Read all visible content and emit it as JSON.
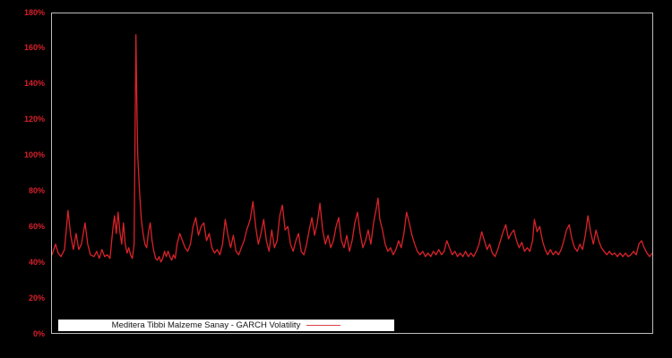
{
  "colors": {
    "background": "#000000",
    "plot_border": "#bdbdbd",
    "line": "#d92229",
    "tick_label": "#d6202b",
    "legend_bg": "#ffffff",
    "legend_text": "#141414"
  },
  "legend": {
    "label": "Meditera Tibbi Malzeme Sanay - GARCH Volatility"
  },
  "chart_data": {
    "type": "line",
    "title": "",
    "xlabel": "",
    "ylabel": "",
    "ylim": [
      0,
      180
    ],
    "y_unit": "%",
    "ytick_values": [
      0,
      20,
      40,
      60,
      80,
      100,
      120,
      140,
      160,
      180
    ],
    "ytick_labels": [
      "0%",
      "20%",
      "40%",
      "60%",
      "80%",
      "100%",
      "120%",
      "140%",
      "160%",
      "180%"
    ],
    "xticks_shown": false,
    "grid": false,
    "legend_position": "bottom-left inside plot",
    "x_range": [
      0,
      672
    ],
    "series": [
      {
        "name": "Meditera Tibbi Malzeme Sanay - GARCH Volatility",
        "color": "#d92229",
        "unit": "%",
        "points": [
          [
            0,
            44
          ],
          [
            4,
            50
          ],
          [
            7,
            45
          ],
          [
            10,
            43
          ],
          [
            14,
            47
          ],
          [
            18,
            69
          ],
          [
            21,
            55
          ],
          [
            24,
            47
          ],
          [
            27,
            56
          ],
          [
            30,
            47
          ],
          [
            33,
            50
          ],
          [
            37,
            62
          ],
          [
            40,
            50
          ],
          [
            43,
            44
          ],
          [
            47,
            43
          ],
          [
            50,
            46
          ],
          [
            53,
            42
          ],
          [
            56,
            47
          ],
          [
            59,
            43
          ],
          [
            62,
            44
          ],
          [
            65,
            42
          ],
          [
            68,
            58
          ],
          [
            70,
            66
          ],
          [
            72,
            56
          ],
          [
            74,
            68
          ],
          [
            76,
            57
          ],
          [
            78,
            50
          ],
          [
            80,
            62
          ],
          [
            82,
            50
          ],
          [
            84,
            45
          ],
          [
            86,
            48
          ],
          [
            88,
            44
          ],
          [
            90,
            42
          ],
          [
            92,
            50
          ],
          [
            94,
            168
          ],
          [
            95,
            130
          ],
          [
            96,
            100
          ],
          [
            98,
            80
          ],
          [
            100,
            64
          ],
          [
            102,
            56
          ],
          [
            104,
            50
          ],
          [
            106,
            48
          ],
          [
            108,
            57
          ],
          [
            110,
            62
          ],
          [
            112,
            52
          ],
          [
            114,
            46
          ],
          [
            116,
            42
          ],
          [
            118,
            41
          ],
          [
            120,
            43
          ],
          [
            122,
            40
          ],
          [
            124,
            42
          ],
          [
            126,
            46
          ],
          [
            128,
            43
          ],
          [
            130,
            46
          ],
          [
            132,
            43
          ],
          [
            134,
            41
          ],
          [
            136,
            44
          ],
          [
            138,
            42
          ],
          [
            140,
            50
          ],
          [
            143,
            56
          ],
          [
            146,
            52
          ],
          [
            149,
            48
          ],
          [
            152,
            46
          ],
          [
            155,
            50
          ],
          [
            158,
            60
          ],
          [
            161,
            65
          ],
          [
            164,
            55
          ],
          [
            167,
            60
          ],
          [
            170,
            62
          ],
          [
            173,
            52
          ],
          [
            176,
            56
          ],
          [
            179,
            48
          ],
          [
            182,
            45
          ],
          [
            185,
            47
          ],
          [
            188,
            44
          ],
          [
            191,
            50
          ],
          [
            194,
            64
          ],
          [
            197,
            55
          ],
          [
            200,
            48
          ],
          [
            203,
            55
          ],
          [
            206,
            46
          ],
          [
            209,
            44
          ],
          [
            212,
            48
          ],
          [
            215,
            52
          ],
          [
            218,
            58
          ],
          [
            222,
            64
          ],
          [
            225,
            74
          ],
          [
            228,
            60
          ],
          [
            231,
            50
          ],
          [
            234,
            56
          ],
          [
            237,
            64
          ],
          [
            240,
            52
          ],
          [
            243,
            46
          ],
          [
            246,
            58
          ],
          [
            249,
            48
          ],
          [
            252,
            52
          ],
          [
            255,
            66
          ],
          [
            258,
            72
          ],
          [
            261,
            58
          ],
          [
            264,
            60
          ],
          [
            267,
            50
          ],
          [
            270,
            46
          ],
          [
            273,
            52
          ],
          [
            276,
            56
          ],
          [
            279,
            46
          ],
          [
            282,
            44
          ],
          [
            285,
            50
          ],
          [
            288,
            58
          ],
          [
            291,
            65
          ],
          [
            294,
            55
          ],
          [
            297,
            62
          ],
          [
            300,
            73
          ],
          [
            303,
            58
          ],
          [
            306,
            50
          ],
          [
            309,
            55
          ],
          [
            312,
            48
          ],
          [
            315,
            52
          ],
          [
            318,
            60
          ],
          [
            321,
            65
          ],
          [
            324,
            52
          ],
          [
            327,
            48
          ],
          [
            330,
            55
          ],
          [
            333,
            46
          ],
          [
            336,
            52
          ],
          [
            339,
            62
          ],
          [
            342,
            68
          ],
          [
            345,
            56
          ],
          [
            348,
            48
          ],
          [
            351,
            52
          ],
          [
            354,
            58
          ],
          [
            357,
            50
          ],
          [
            360,
            62
          ],
          [
            363,
            70
          ],
          [
            365,
            76
          ],
          [
            367,
            64
          ],
          [
            370,
            58
          ],
          [
            373,
            50
          ],
          [
            376,
            46
          ],
          [
            379,
            48
          ],
          [
            382,
            44
          ],
          [
            385,
            47
          ],
          [
            388,
            52
          ],
          [
            391,
            48
          ],
          [
            394,
            56
          ],
          [
            397,
            68
          ],
          [
            400,
            62
          ],
          [
            403,
            55
          ],
          [
            406,
            50
          ],
          [
            409,
            46
          ],
          [
            412,
            44
          ],
          [
            415,
            46
          ],
          [
            418,
            43
          ],
          [
            421,
            45
          ],
          [
            424,
            43
          ],
          [
            427,
            46
          ],
          [
            430,
            44
          ],
          [
            433,
            47
          ],
          [
            436,
            44
          ],
          [
            439,
            46
          ],
          [
            442,
            52
          ],
          [
            445,
            48
          ],
          [
            448,
            44
          ],
          [
            451,
            46
          ],
          [
            454,
            43
          ],
          [
            457,
            45
          ],
          [
            460,
            43
          ],
          [
            463,
            46
          ],
          [
            466,
            43
          ],
          [
            469,
            45
          ],
          [
            472,
            43
          ],
          [
            475,
            46
          ],
          [
            478,
            50
          ],
          [
            481,
            57
          ],
          [
            484,
            52
          ],
          [
            487,
            47
          ],
          [
            490,
            50
          ],
          [
            493,
            45
          ],
          [
            496,
            43
          ],
          [
            499,
            47
          ],
          [
            502,
            52
          ],
          [
            505,
            57
          ],
          [
            508,
            61
          ],
          [
            511,
            53
          ],
          [
            514,
            56
          ],
          [
            517,
            58
          ],
          [
            520,
            52
          ],
          [
            523,
            48
          ],
          [
            526,
            51
          ],
          [
            529,
            46
          ],
          [
            532,
            48
          ],
          [
            535,
            46
          ],
          [
            538,
            52
          ],
          [
            540,
            64
          ],
          [
            543,
            57
          ],
          [
            546,
            60
          ],
          [
            549,
            52
          ],
          [
            552,
            47
          ],
          [
            555,
            44
          ],
          [
            558,
            47
          ],
          [
            561,
            44
          ],
          [
            564,
            46
          ],
          [
            567,
            44
          ],
          [
            570,
            47
          ],
          [
            573,
            52
          ],
          [
            576,
            58
          ],
          [
            579,
            61
          ],
          [
            582,
            53
          ],
          [
            585,
            48
          ],
          [
            588,
            46
          ],
          [
            591,
            50
          ],
          [
            594,
            47
          ],
          [
            597,
            55
          ],
          [
            600,
            66
          ],
          [
            603,
            57
          ],
          [
            606,
            50
          ],
          [
            609,
            58
          ],
          [
            612,
            52
          ],
          [
            615,
            48
          ],
          [
            618,
            46
          ],
          [
            621,
            44
          ],
          [
            624,
            46
          ],
          [
            627,
            44
          ],
          [
            630,
            45
          ],
          [
            633,
            43
          ],
          [
            636,
            45
          ],
          [
            639,
            43
          ],
          [
            642,
            45
          ],
          [
            645,
            43
          ],
          [
            648,
            44
          ],
          [
            651,
            46
          ],
          [
            654,
            44
          ],
          [
            657,
            50
          ],
          [
            660,
            52
          ],
          [
            663,
            48
          ],
          [
            666,
            45
          ],
          [
            669,
            43
          ],
          [
            672,
            45
          ]
        ]
      }
    ]
  }
}
